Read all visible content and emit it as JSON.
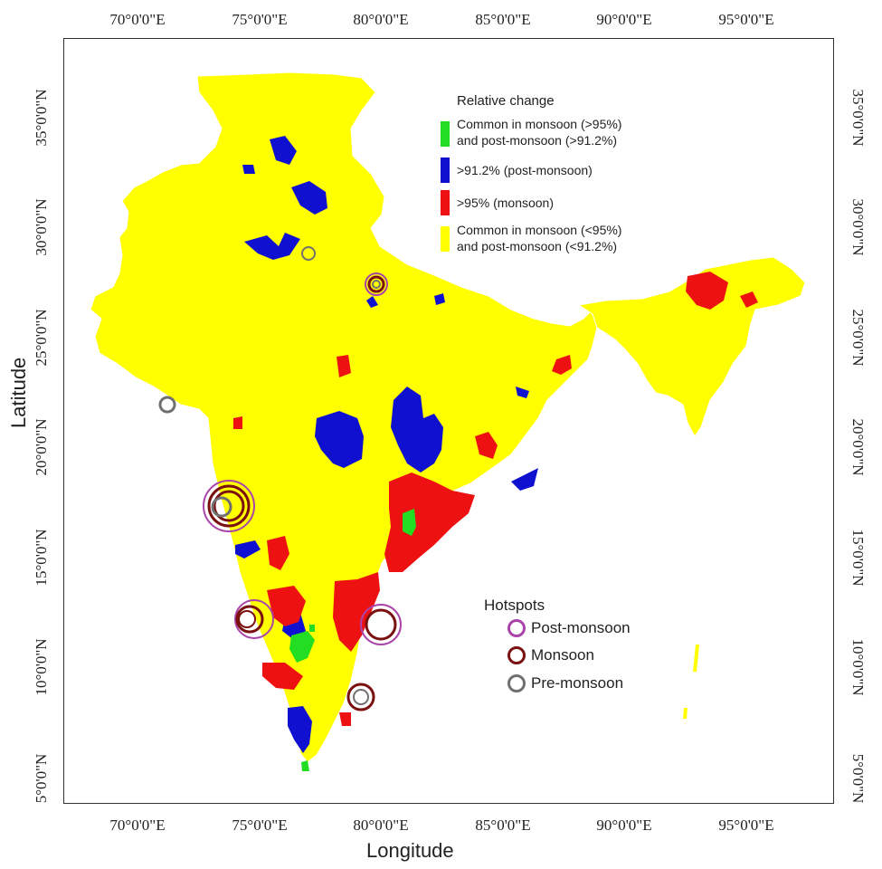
{
  "axes": {
    "x_title": "Longitude",
    "y_title": "Latitude",
    "x_ticks": [
      "70°0'0\"E",
      "75°0'0\"E",
      "80°0'0\"E",
      "85°0'0\"E",
      "90°0'0\"E",
      "95°0'0\"E"
    ],
    "y_ticks": [
      "35°0'0\"N",
      "30°0'0\"N",
      "25°0'0\"N",
      "20°0'0\"N",
      "15°0'0\"N",
      "10°0'0\"N",
      "5°0'0\"N"
    ]
  },
  "legend": {
    "title": "Relative change",
    "items": [
      {
        "label_line1": "Common in monsoon (>95%)",
        "label_line2": "and post-monsoon (>91.2%)",
        "color": "#22dd22"
      },
      {
        "label_line1": ">91.2% (post-monsoon)",
        "label_line2": "",
        "color": "#1010d0"
      },
      {
        "label_line1": ">95% (monsoon)",
        "label_line2": "",
        "color": "#ee1111"
      },
      {
        "label_line1": "Common in monsoon (<95%)",
        "label_line2": "and post-monsoon (<91.2%)",
        "color": "#ffff00"
      }
    ]
  },
  "hotspots": {
    "title": "Hotspots",
    "items": [
      {
        "label": "Post-monsoon",
        "color": "#aa44aa"
      },
      {
        "label": "Monsoon",
        "color": "#7a1010"
      },
      {
        "label": "Pre-monsoon",
        "color": "#707070"
      }
    ]
  },
  "colors": {
    "yellow": "#ffff00",
    "blue": "#1010d0",
    "red": "#ee1111",
    "green": "#22dd22",
    "border": "#ffffff"
  }
}
